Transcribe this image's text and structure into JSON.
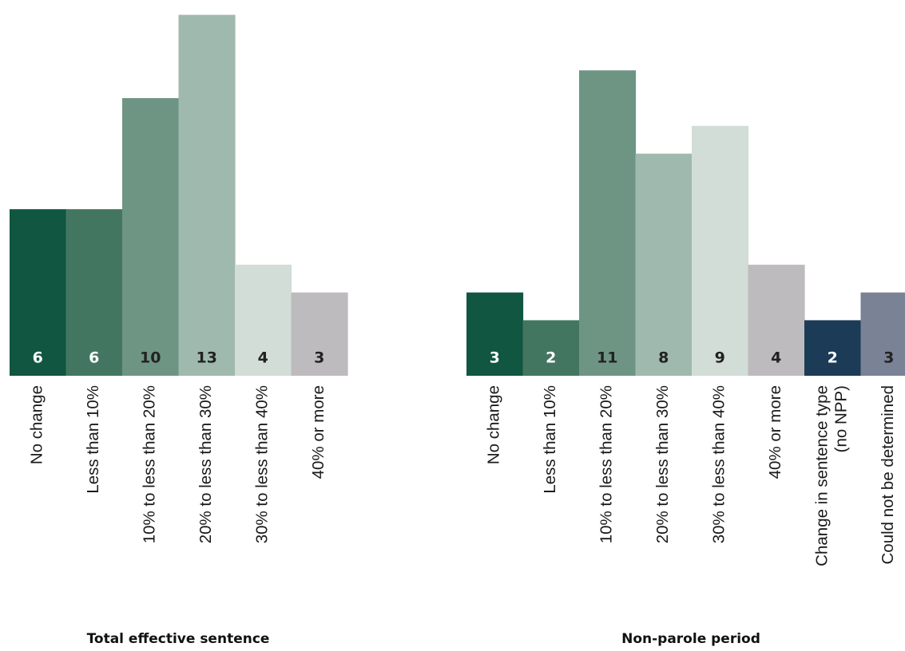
{
  "chart_data": [
    {
      "type": "bar",
      "title": "Total effective sentence",
      "categories": [
        "No change",
        "Less than 10%",
        "10% to less than 20%",
        "20% to less than 30%",
        "30% to less than 40%",
        "40% or more"
      ],
      "values": [
        6,
        6,
        10,
        13,
        4,
        3
      ],
      "colors": [
        "#105640",
        "#437660",
        "#6e9584",
        "#a0b9af",
        "#d2ddd8",
        "#bdbbbd"
      ],
      "label_colors": [
        "#ffffff",
        "#ffffff",
        "#222222",
        "#222222",
        "#222222",
        "#222222"
      ],
      "grid": false,
      "legend": "none"
    },
    {
      "type": "bar",
      "title": "Non-parole period",
      "categories": [
        "No change",
        "Less than 10%",
        "10% to less than 20%",
        "20% to less than 30%",
        "30% to less than 40%",
        "40% or more",
        [
          "Change in sentence type",
          "(no NPP)"
        ],
        "Could not be determined"
      ],
      "values": [
        3,
        2,
        11,
        8,
        9,
        4,
        2,
        3
      ],
      "colors": [
        "#105640",
        "#437660",
        "#6e9584",
        "#a0b9af",
        "#d2ddd8",
        "#bdbbbd",
        "#1c3b57",
        "#7a8296"
      ],
      "label_colors": [
        "#ffffff",
        "#ffffff",
        "#222222",
        "#222222",
        "#222222",
        "#222222",
        "#ffffff",
        "#222222"
      ],
      "grid": false,
      "legend": "none"
    }
  ]
}
